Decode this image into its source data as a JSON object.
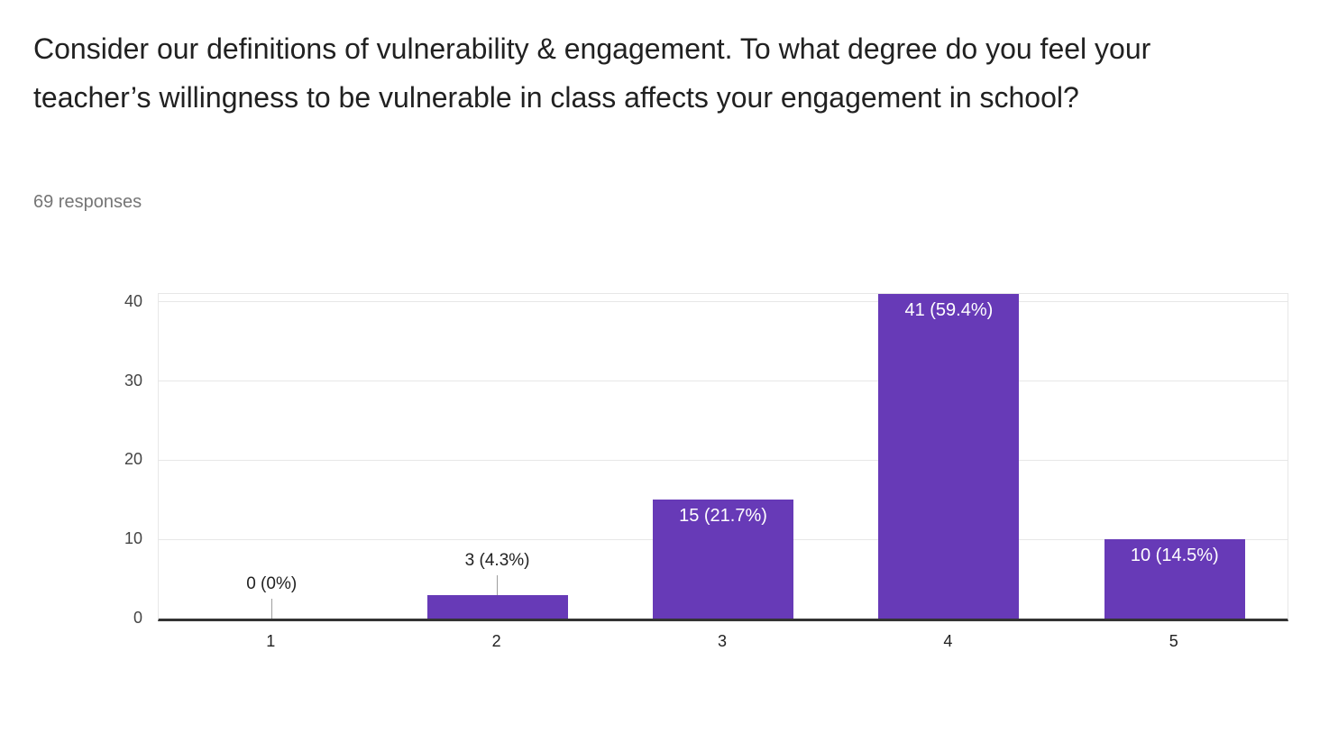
{
  "header": {
    "title": "Consider our definitions of vulnerability & engagement. To what degree do you feel your teacher’s willingness to be vulnerable in class affects your engagement in school?",
    "responses_label": "69 responses"
  },
  "chart_data": {
    "type": "bar",
    "title": "Consider our definitions of vulnerability & engagement. To what degree do you feel your teacher’s willingness to be vulnerable in class affects your engagement in school?",
    "subtitle": "69 responses",
    "categories": [
      "1",
      "2",
      "3",
      "4",
      "5"
    ],
    "values": [
      0,
      3,
      15,
      41,
      10
    ],
    "bar_labels": [
      "0 (0%)",
      "3 (4.3%)",
      "15 (21.7%)",
      "41 (59.4%)",
      "10 (14.5%)"
    ],
    "total_responses": 69,
    "xlabel": "",
    "ylabel": "",
    "ylim": [
      0,
      41
    ],
    "yticks": [
      0,
      10,
      20,
      30,
      40
    ],
    "grid": true,
    "legend_position": "none",
    "colors": {
      "bar": "#673ab7",
      "label_inside": "#ffffff",
      "label_outside": "#212121",
      "leader_line": "#9e9e9e",
      "gridline": "#e7e7e7",
      "baseline": "#333333",
      "axis_text": "#444444",
      "title_text": "#212121",
      "subtitle_text": "#757575"
    }
  }
}
